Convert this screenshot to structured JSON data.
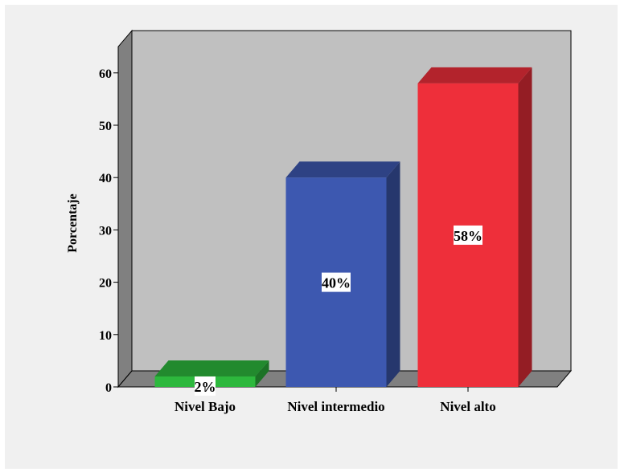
{
  "chart_data": {
    "type": "bar",
    "ylabel": "Porcentaje",
    "xlabel": "",
    "ylim": [
      0,
      65
    ],
    "yticks": [
      "0",
      "10",
      "20",
      "30",
      "40",
      "50",
      "60"
    ],
    "categories": [
      "Nivel Bajo",
      "Nivel intermedio",
      "Nivel alto"
    ],
    "values": [
      2,
      40,
      58
    ],
    "value_labels": [
      "2%",
      "40%",
      "58%"
    ],
    "colors": [
      "#2db83d",
      "#3d58b0",
      "#ee2f3a"
    ],
    "grid": false,
    "legend": "none",
    "style": "3d"
  }
}
